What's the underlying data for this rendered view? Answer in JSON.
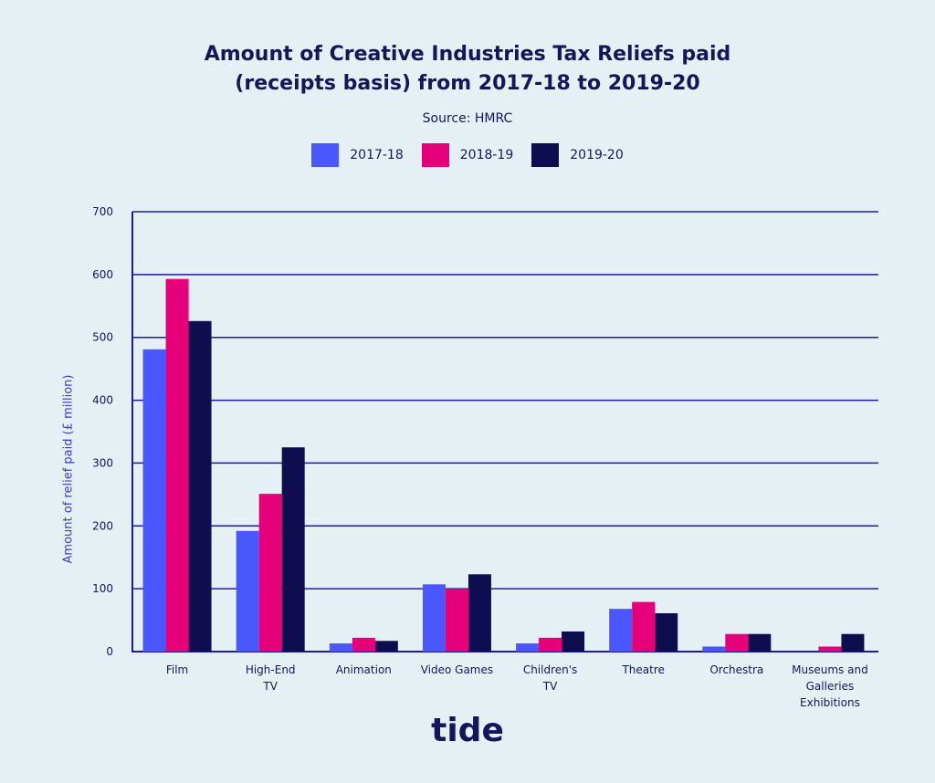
{
  "title_line1": "Amount of Creative Industries Tax Reliefs paid",
  "title_line2": "(receipts basis) from 2017-18 to 2019-20",
  "source": "Source: HMRC",
  "logo": "tide",
  "colors": {
    "2017-18": "#4a57ff",
    "2018-19": "#e5007a",
    "2019-20": "#0d0d4f",
    "axis": "#1c1ca0",
    "text": "#15155c"
  },
  "chart_data": {
    "type": "bar",
    "title": "Amount of Creative Industries Tax Reliefs paid (receipts basis) from 2017-18 to 2019-20",
    "subtitle": "Source: HMRC",
    "xlabel": "",
    "ylabel": "Amount of relief paid (£ million)",
    "ylim": [
      0,
      700
    ],
    "yticks": [
      0,
      100,
      200,
      300,
      400,
      500,
      600,
      700
    ],
    "grid": true,
    "legend_position": "top-center",
    "categories": [
      [
        "Film"
      ],
      [
        "High-End",
        "TV"
      ],
      [
        "Animation"
      ],
      [
        "Video Games"
      ],
      [
        "Children's",
        "TV"
      ],
      [
        "Theatre"
      ],
      [
        "Orchestra"
      ],
      [
        "Museums and",
        "Galleries",
        "Exhibitions"
      ]
    ],
    "series": [
      {
        "name": "2017-18",
        "color": "#4a57ff",
        "values": [
          481,
          192,
          13,
          107,
          13,
          68,
          8,
          0
        ]
      },
      {
        "name": "2018-19",
        "color": "#e5007a",
        "values": [
          593,
          251,
          22,
          100,
          22,
          79,
          28,
          8
        ]
      },
      {
        "name": "2019-20",
        "color": "#0d0d4f",
        "values": [
          526,
          325,
          17,
          123,
          32,
          61,
          28,
          28
        ]
      }
    ]
  }
}
